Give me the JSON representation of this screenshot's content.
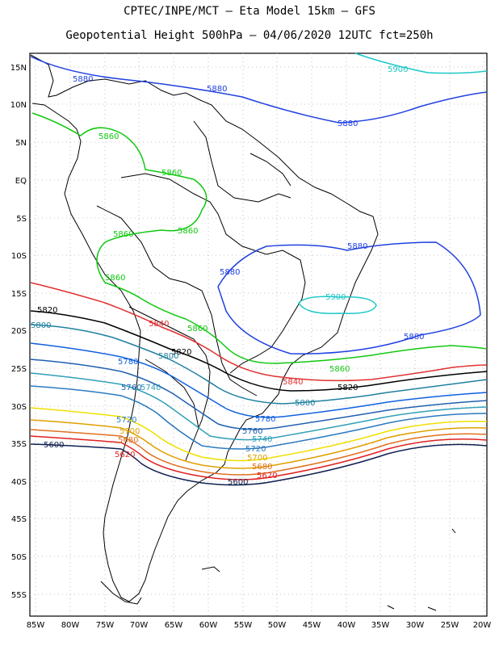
{
  "title_line1": "CPTEC/INPE/MCT –  Eta Model 15km – GFS",
  "title_line2": "Geopotential Height 500hPa – 04/06/2020 12UTC fct=250h",
  "lat_labels": [
    "15N",
    "10N",
    "5N",
    "EQ",
    "5S",
    "10S",
    "15S",
    "20S",
    "25S",
    "30S",
    "35S",
    "40S",
    "45S",
    "50S",
    "55S"
  ],
  "lon_labels": [
    "85W",
    "80W",
    "75W",
    "70W",
    "65W",
    "60W",
    "55W",
    "50W",
    "45W",
    "40W",
    "35W",
    "30W",
    "25W",
    "20W"
  ],
  "contours": [
    {
      "value": "5900",
      "color": "#1ec8c8"
    },
    {
      "value": "5880",
      "color": "#2040e0"
    },
    {
      "value": "5860",
      "color": "#10c810"
    },
    {
      "value": "5840",
      "color": "#e03030"
    },
    {
      "value": "5820",
      "color": "#000000"
    },
    {
      "value": "5800",
      "color": "#2080a0"
    },
    {
      "value": "5780",
      "color": "#1060e0"
    },
    {
      "value": "5760",
      "color": "#2060b0"
    },
    {
      "value": "5740",
      "color": "#30a0b8"
    },
    {
      "value": "5720",
      "color": "#f0e000"
    },
    {
      "value": "5700",
      "color": "#e0a000"
    },
    {
      "value": "5680",
      "color": "#e07020"
    },
    {
      "value": "5620",
      "color": "#e02020"
    },
    {
      "value": "5600",
      "color": "#102050"
    }
  ]
}
